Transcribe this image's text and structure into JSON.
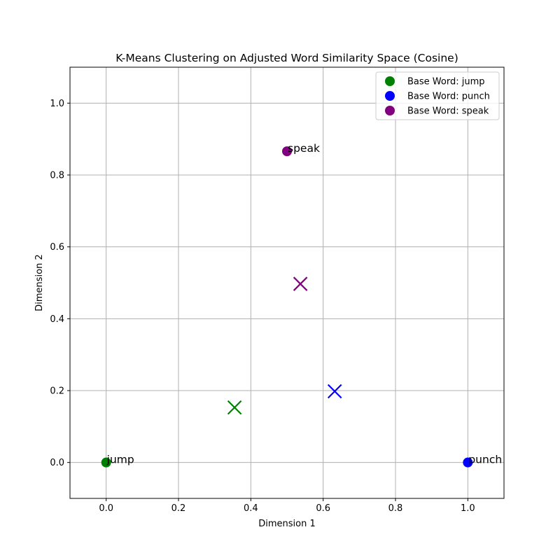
{
  "chart_data": {
    "type": "scatter",
    "title": "K-Means Clustering on Adjusted Word Similarity Space (Cosine)",
    "xlabel": "Dimension 1",
    "ylabel": "Dimension 2",
    "xlim": [
      -0.1,
      1.1
    ],
    "ylim": [
      -0.1,
      1.1
    ],
    "xticks": [
      0.0,
      0.2,
      0.4,
      0.6,
      0.8,
      1.0
    ],
    "yticks": [
      0.0,
      0.2,
      0.4,
      0.6,
      0.8,
      1.0
    ],
    "xtick_labels": [
      "0.0",
      "0.2",
      "0.4",
      "0.6",
      "0.8",
      "1.0"
    ],
    "ytick_labels": [
      "0.0",
      "0.2",
      "0.4",
      "0.6",
      "0.8",
      "1.0"
    ],
    "grid": true,
    "legend_position": "top-right",
    "series": [
      {
        "name": "Base Word: jump",
        "color": "#008000",
        "points": [
          {
            "x": 0.0,
            "y": 0.0,
            "label": "jump"
          }
        ],
        "centroid": {
          "x": 0.355,
          "y": 0.153
        }
      },
      {
        "name": "Base Word: punch",
        "color": "#0000ff",
        "points": [
          {
            "x": 1.0,
            "y": 0.0,
            "label": "punch"
          }
        ],
        "centroid": {
          "x": 0.632,
          "y": 0.198
        }
      },
      {
        "name": "Base Word: speak",
        "color": "#800080",
        "points": [
          {
            "x": 0.5,
            "y": 0.866,
            "label": "speak"
          }
        ],
        "centroid": {
          "x": 0.537,
          "y": 0.497
        }
      }
    ]
  }
}
